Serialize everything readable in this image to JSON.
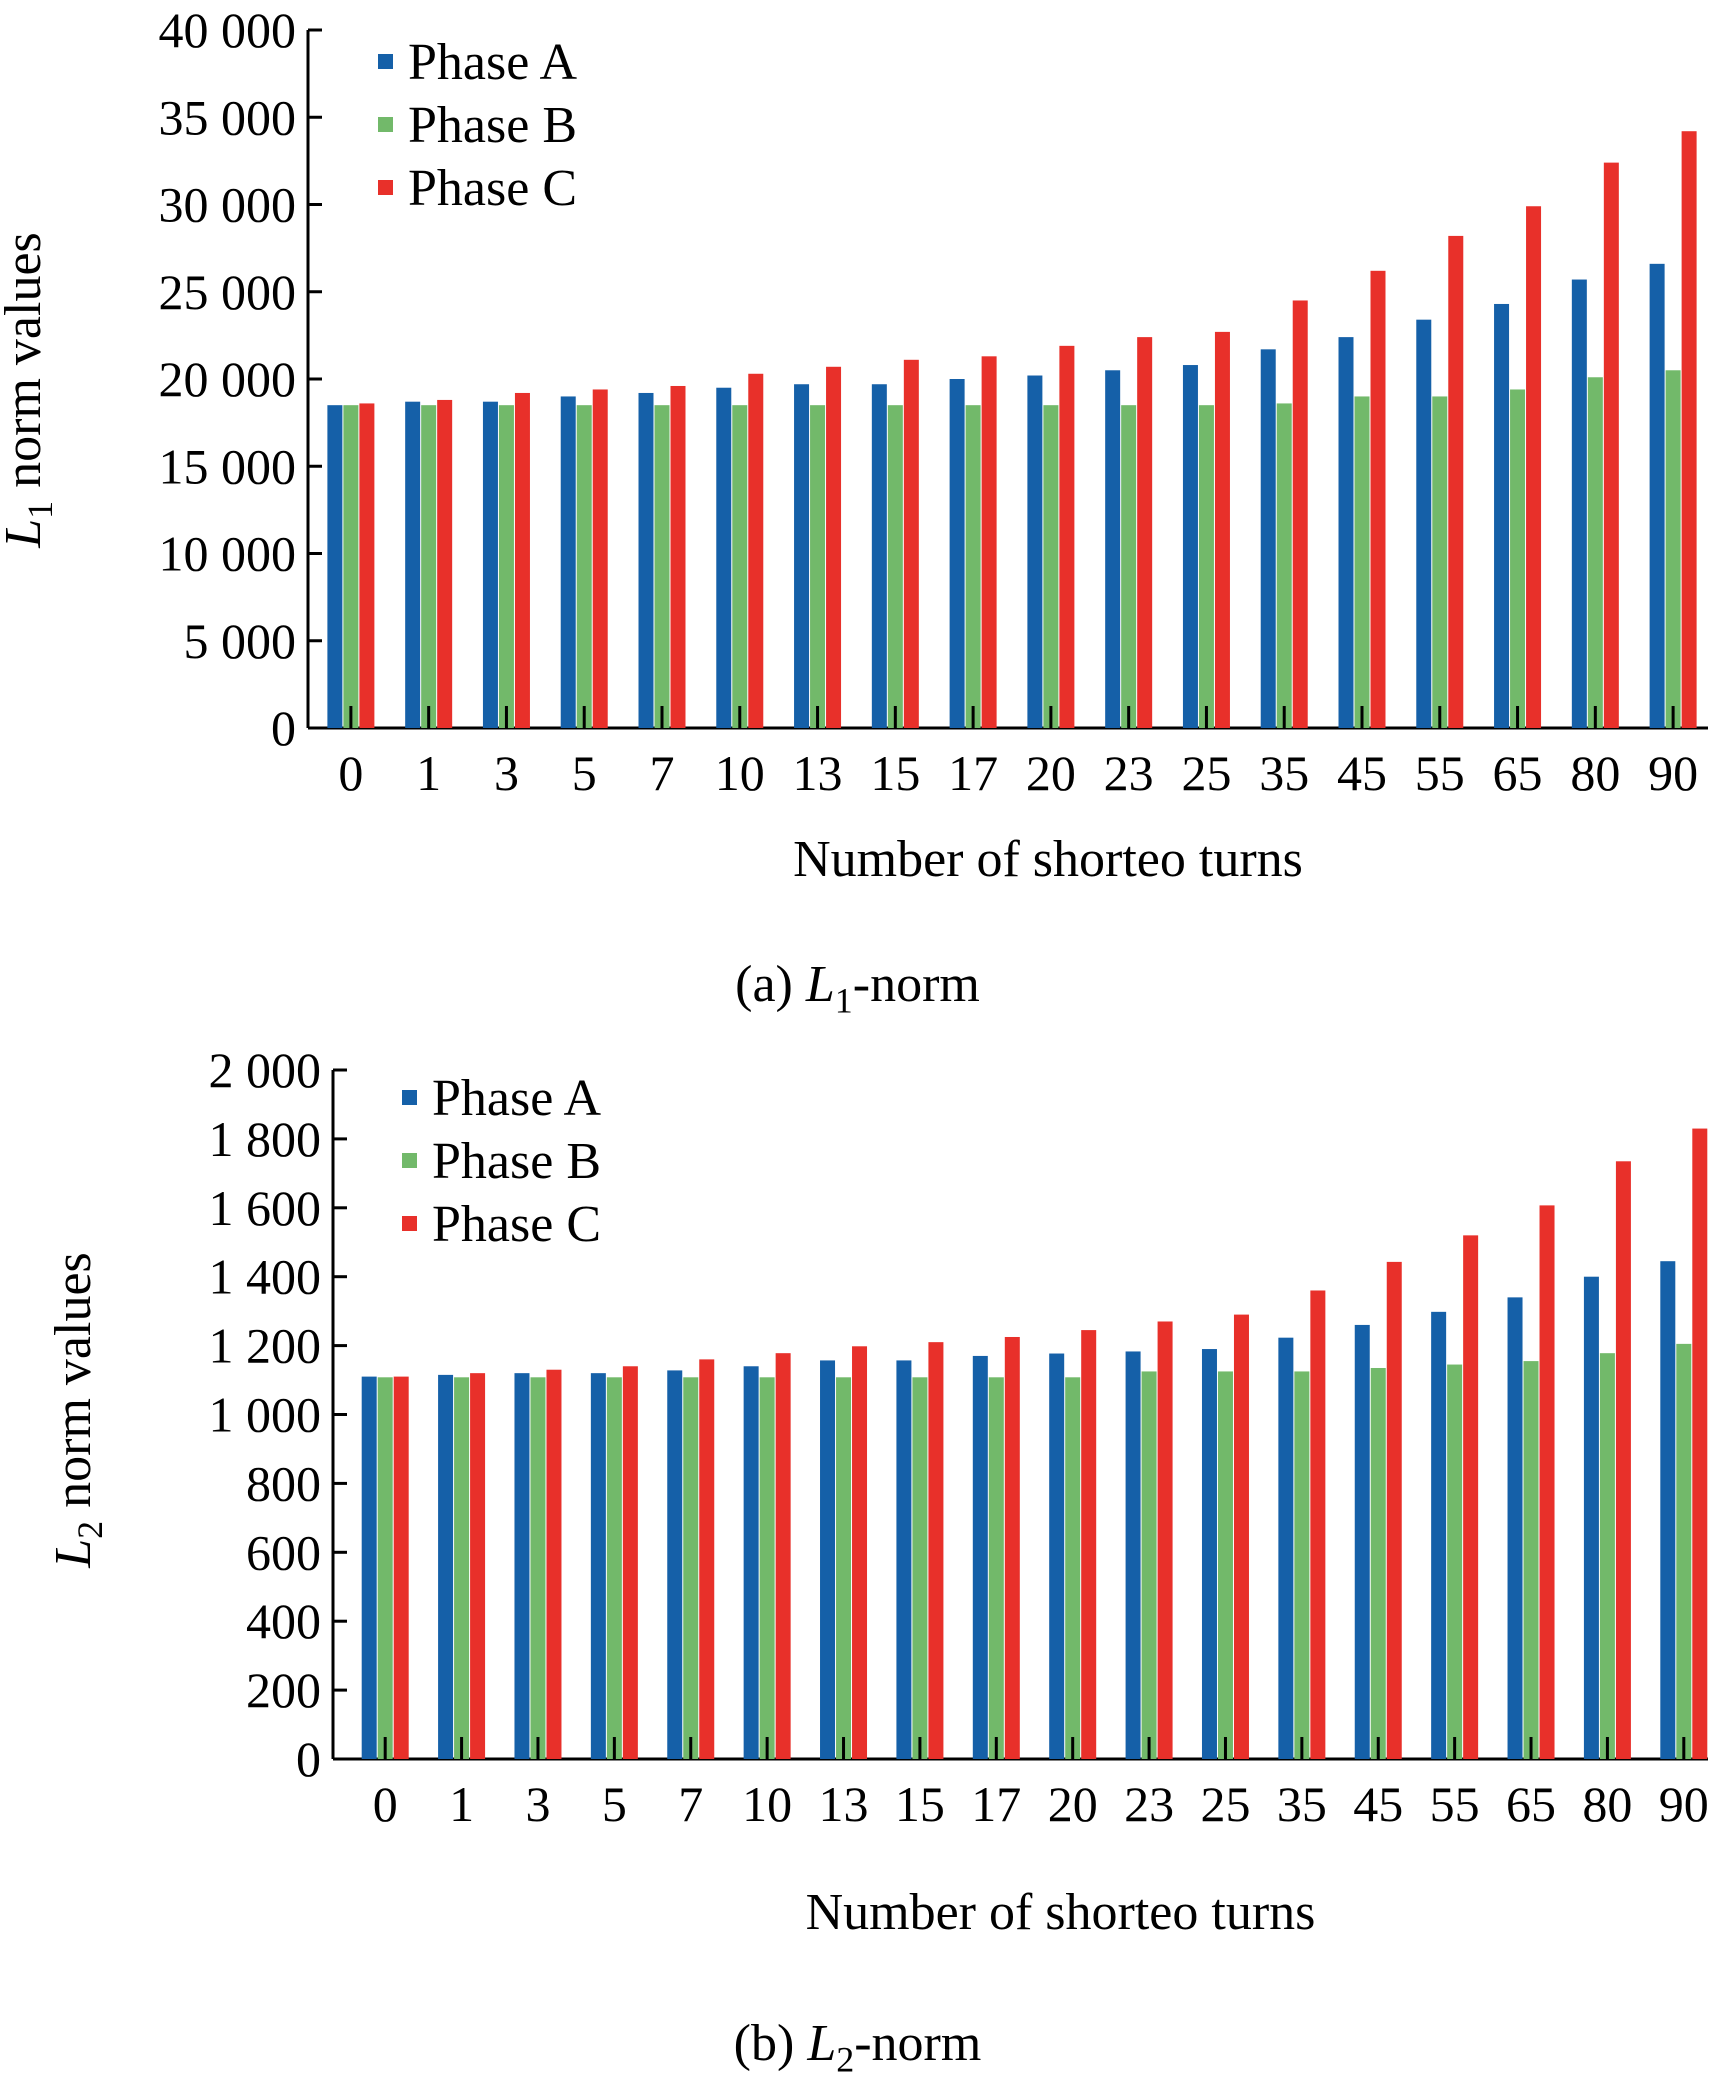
{
  "figure": {
    "caption_a": {
      "prefix": "(a) ",
      "var": "L",
      "sub": "1",
      "suffix": "-norm"
    },
    "caption_b": {
      "prefix": "(b) ",
      "var": "L",
      "sub": "2",
      "suffix": "-norm"
    }
  },
  "chart_data": [
    {
      "type": "bar",
      "ylabel": {
        "var": "L",
        "sub": "1",
        "rest": " norm values"
      },
      "xlabel": "Number of shorteo turns",
      "ylim": [
        0,
        40000
      ],
      "yticks": [
        0,
        5000,
        10000,
        15000,
        20000,
        25000,
        30000,
        35000,
        40000
      ],
      "ytick_labels": [
        "0",
        "5 000",
        "10 000",
        "15 000",
        "20 000",
        "25 000",
        "30 000",
        "35 000",
        "40 000"
      ],
      "categories": [
        "0",
        "1",
        "3",
        "5",
        "7",
        "10",
        "13",
        "15",
        "17",
        "20",
        "23",
        "25",
        "35",
        "45",
        "55",
        "65",
        "80",
        "90"
      ],
      "legend_position": "top-left",
      "series": [
        {
          "name": "Phase A",
          "color": "#1560a8",
          "values": [
            18500,
            18700,
            18700,
            19000,
            19200,
            19500,
            19700,
            19700,
            20000,
            20200,
            20500,
            20800,
            21700,
            22400,
            23400,
            24300,
            25700,
            26600
          ]
        },
        {
          "name": "Phase B",
          "color": "#72b96a",
          "values": [
            18500,
            18500,
            18500,
            18500,
            18500,
            18500,
            18500,
            18500,
            18500,
            18500,
            18500,
            18500,
            18600,
            19000,
            19000,
            19400,
            20100,
            20500
          ]
        },
        {
          "name": "Phase C",
          "color": "#e8302a",
          "values": [
            18600,
            18800,
            19200,
            19400,
            19600,
            20300,
            20700,
            21100,
            21300,
            21900,
            22400,
            22700,
            24500,
            26200,
            28200,
            29900,
            32400,
            34200
          ]
        }
      ]
    },
    {
      "type": "bar",
      "ylabel": {
        "var": "L",
        "sub": "2",
        "rest": " norm values"
      },
      "xlabel": "Number of shorteo turns",
      "ylim": [
        0,
        2000
      ],
      "yticks": [
        0,
        200,
        400,
        600,
        800,
        1000,
        1200,
        1400,
        1600,
        1800,
        2000
      ],
      "ytick_labels": [
        "0",
        "200",
        "400",
        "600",
        "800",
        "1 000",
        "1 200",
        "1 400",
        "1 600",
        "1 800",
        "2 000"
      ],
      "categories": [
        "0",
        "1",
        "3",
        "5",
        "7",
        "10",
        "13",
        "15",
        "17",
        "20",
        "23",
        "25",
        "35",
        "45",
        "55",
        "65",
        "80",
        "90"
      ],
      "legend_position": "top-left",
      "series": [
        {
          "name": "Phase A",
          "color": "#1560a8",
          "values": [
            1110,
            1115,
            1120,
            1120,
            1128,
            1140,
            1157,
            1157,
            1170,
            1177,
            1183,
            1190,
            1223,
            1260,
            1298,
            1340,
            1400,
            1445
          ]
        },
        {
          "name": "Phase B",
          "color": "#72b96a",
          "values": [
            1108,
            1108,
            1108,
            1108,
            1108,
            1108,
            1108,
            1108,
            1108,
            1108,
            1125,
            1125,
            1125,
            1135,
            1145,
            1155,
            1178,
            1205
          ]
        },
        {
          "name": "Phase C",
          "color": "#e8302a",
          "values": [
            1110,
            1120,
            1130,
            1140,
            1160,
            1178,
            1198,
            1210,
            1225,
            1245,
            1270,
            1290,
            1360,
            1443,
            1520,
            1607,
            1735,
            1830
          ]
        }
      ]
    }
  ]
}
